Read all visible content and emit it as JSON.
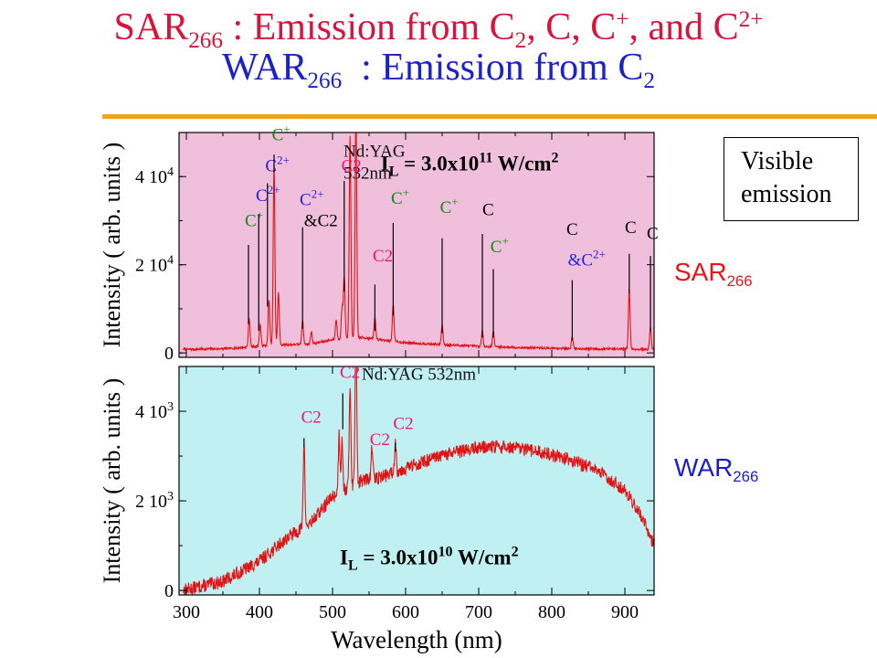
{
  "title": {
    "line1": {
      "a": "SAR",
      "a_sub": "266",
      "b": " : Emission from C",
      "b_sub": "2",
      "c": ", C, C",
      "c_sup": "+",
      "d": ", and C",
      "d_sup": "2+"
    },
    "line2": {
      "a": "WAR",
      "a_sub": "266",
      "b": "  : Emission from C",
      "b_sub": "2"
    }
  },
  "visible_box": {
    "line1": "Visible",
    "line2": "emission"
  },
  "side_labels": {
    "sar": {
      "main": "SAR",
      "sub": "266"
    },
    "war": {
      "main": "WAR",
      "sub": "266"
    }
  },
  "colors": {
    "title_red": "#d7143c",
    "title_blue": "#1c21c8",
    "rule_orange": "#f5a21b",
    "sar_bg": "#f0bfdc",
    "war_bg": "#c0f0f2",
    "trace": "#e01414",
    "label_blue": "#1e1ee6",
    "label_pink": "#ee1478",
    "label_green": "#108a10"
  },
  "chart_data": [
    {
      "type": "line",
      "panel": "SAR",
      "xlabel": "",
      "ylabel": "Intensity ( arb. units )",
      "xlim": [
        290,
        940
      ],
      "ylim": [
        -1000,
        50000
      ],
      "yticks": [
        0,
        20000,
        40000
      ],
      "ytick_labels": [
        {
          "m": "0",
          "e": ""
        },
        {
          "m": "2 10",
          "e": "4"
        },
        {
          "m": "4 10",
          "e": "4"
        }
      ],
      "laser_label": {
        "l1": "Nd:YAG",
        "l2": "532nm"
      },
      "intensity_label": {
        "I": "I",
        "sub": "L",
        "mid": " = 3.0x10",
        "exp": "11",
        "unit": " W/cm",
        "unit_exp": "2"
      },
      "baseline": [
        [
          300,
          800
        ],
        [
          360,
          1000
        ],
        [
          420,
          1800
        ],
        [
          470,
          2000
        ],
        [
          500,
          3000
        ],
        [
          540,
          3500
        ],
        [
          600,
          2300
        ],
        [
          660,
          1800
        ],
        [
          700,
          1500
        ],
        [
          760,
          1200
        ],
        [
          820,
          1000
        ],
        [
          880,
          900
        ],
        [
          940,
          800
        ]
      ],
      "peaks": [
        {
          "x": 386,
          "y": 6500
        },
        {
          "x": 401,
          "y": 5000
        },
        {
          "x": 413,
          "y": 10500
        },
        {
          "x": 420,
          "y": 41000
        },
        {
          "x": 426,
          "y": 12000
        },
        {
          "x": 459,
          "y": 5500
        },
        {
          "x": 471,
          "y": 2800
        },
        {
          "x": 505,
          "y": 4500
        },
        {
          "x": 513,
          "y": 7000
        },
        {
          "x": 516,
          "y": 14000
        },
        {
          "x": 524,
          "y": 46000
        },
        {
          "x": 532,
          "y": 52000
        },
        {
          "x": 558,
          "y": 5000
        },
        {
          "x": 583,
          "y": 8500
        },
        {
          "x": 650,
          "y": 4500
        },
        {
          "x": 705,
          "y": 3500
        },
        {
          "x": 720,
          "y": 3500
        },
        {
          "x": 828,
          "y": 2800
        },
        {
          "x": 906,
          "y": 13500
        },
        {
          "x": 935,
          "y": 5000
        }
      ],
      "annotations": [
        {
          "text": "C",
          "sup": "+",
          "color": "green",
          "lx": 380,
          "ly": 28800,
          "tx": 385,
          "ty": 24500,
          "by": 6500
        },
        {
          "text": "C",
          "sup": "2+",
          "color": "blue",
          "lx": 395,
          "ly": 34500,
          "tx": 399,
          "ty": 31500,
          "by": 5000
        },
        {
          "text": "C",
          "sup": "2+",
          "color": "blue",
          "lx": 408,
          "ly": 41200,
          "tx": 411,
          "ty": 38500,
          "by": 10500
        },
        {
          "text": "C",
          "sup": "+",
          "color": "green",
          "lx": 417,
          "ly": 48200,
          "tx": 420,
          "ty": 45000,
          "by": 41000
        },
        {
          "text": "C",
          "sup": "2+",
          "color": "blue",
          "lx": 455,
          "ly": 33500,
          "tx": 459,
          "ty": 28500,
          "by": 5500
        },
        {
          "text": "&C2",
          "sup": "",
          "color": "black",
          "lx": 461,
          "ly": 28800,
          "tx": -1,
          "ty": 0,
          "by": 0
        },
        {
          "text": "C2",
          "sup": "",
          "color": "pink",
          "lx": 512,
          "ly": 41200,
          "tx": 516,
          "ty": 39000,
          "by": 14000
        },
        {
          "text": "C2",
          "sup": "",
          "color": "pink",
          "lx": 555,
          "ly": 20800,
          "tx": 558,
          "ty": 15500,
          "by": 5000
        },
        {
          "text": "C",
          "sup": "+",
          "color": "green",
          "lx": 580,
          "ly": 33800,
          "tx": 583,
          "ty": 29500,
          "by": 8500
        },
        {
          "text": "C",
          "sup": "+",
          "color": "green",
          "lx": 647,
          "ly": 31800,
          "tx": 650,
          "ty": 26000,
          "by": 4500
        },
        {
          "text": "C",
          "sup": "",
          "color": "black",
          "lx": 705,
          "ly": 31200,
          "tx": 705,
          "ty": 27000,
          "by": 3500
        },
        {
          "text": "C",
          "sup": "+",
          "color": "green",
          "lx": 716,
          "ly": 22800,
          "tx": 720,
          "ty": 19000,
          "by": 3500
        },
        {
          "text": "C",
          "sup": "",
          "color": "black",
          "lx": 820,
          "ly": 26800,
          "tx": -1,
          "ty": 0,
          "by": 0
        },
        {
          "text": "&C",
          "sup": "2+",
          "color": "blue",
          "lx": 822,
          "ly": 19800,
          "tx": 828,
          "ty": 16500,
          "by": 2800
        },
        {
          "text": "C",
          "sup": "",
          "color": "black",
          "lx": 900,
          "ly": 27200,
          "tx": 906,
          "ty": 22500,
          "by": 13500
        },
        {
          "text": "C",
          "sup": "",
          "color": "black",
          "lx": 930,
          "ly": 25800,
          "tx": 935,
          "ty": 22000,
          "by": 5000
        }
      ]
    },
    {
      "type": "line",
      "panel": "WAR",
      "xlabel": "Wavelength (nm)",
      "ylabel": "Intensity ( arb. units )",
      "xlim": [
        290,
        940
      ],
      "ylim": [
        -100,
        5000
      ],
      "xticks": [
        300,
        400,
        500,
        600,
        700,
        800,
        900
      ],
      "yticks": [
        0,
        2000,
        4000
      ],
      "ytick_labels": [
        {
          "m": "0",
          "e": ""
        },
        {
          "m": "2 10",
          "e": "3"
        },
        {
          "m": "4 10",
          "e": "3"
        }
      ],
      "laser_label": {
        "l1": "Nd:YAG 532nm"
      },
      "intensity_label": {
        "I": "I",
        "sub": "L",
        "mid": " = 3.0x10",
        "exp": "10",
        "unit": " W/cm",
        "unit_exp": "2"
      },
      "baseline": [
        [
          300,
          20
        ],
        [
          350,
          200
        ],
        [
          400,
          650
        ],
        [
          440,
          1200
        ],
        [
          470,
          1500
        ],
        [
          500,
          2100
        ],
        [
          540,
          2450
        ],
        [
          570,
          2550
        ],
        [
          620,
          2850
        ],
        [
          660,
          3050
        ],
        [
          700,
          3200
        ],
        [
          740,
          3200
        ],
        [
          780,
          3100
        ],
        [
          820,
          2950
        ],
        [
          860,
          2700
        ],
        [
          900,
          2250
        ],
        [
          925,
          1600
        ],
        [
          940,
          1000
        ]
      ],
      "peaks": [
        {
          "x": 461,
          "y": 1900
        },
        {
          "x": 509,
          "y": 1300
        },
        {
          "x": 513,
          "y": 1200
        },
        {
          "x": 524,
          "y": 2300
        },
        {
          "x": 532,
          "y": 3500
        },
        {
          "x": 554,
          "y": 700
        },
        {
          "x": 586,
          "y": 650
        }
      ],
      "annotations": [
        {
          "text": "C2",
          "sup": "",
          "color": "pink",
          "lx": 457,
          "ly": 3750,
          "tx": 461,
          "ty": 3400,
          "by": 3200
        },
        {
          "text": "C2",
          "sup": "",
          "color": "pink",
          "lx": 510,
          "ly": 4750,
          "tx": 514,
          "ty": 4400,
          "by": 3600
        },
        {
          "text": "C2",
          "sup": "",
          "color": "pink",
          "lx": 551,
          "ly": 3250,
          "tx": -1,
          "ty": 0,
          "by": 0
        },
        {
          "text": "C2",
          "sup": "",
          "color": "pink",
          "lx": 583,
          "ly": 3600,
          "tx": 586,
          "ty": 3300,
          "by": 3100
        }
      ]
    }
  ]
}
